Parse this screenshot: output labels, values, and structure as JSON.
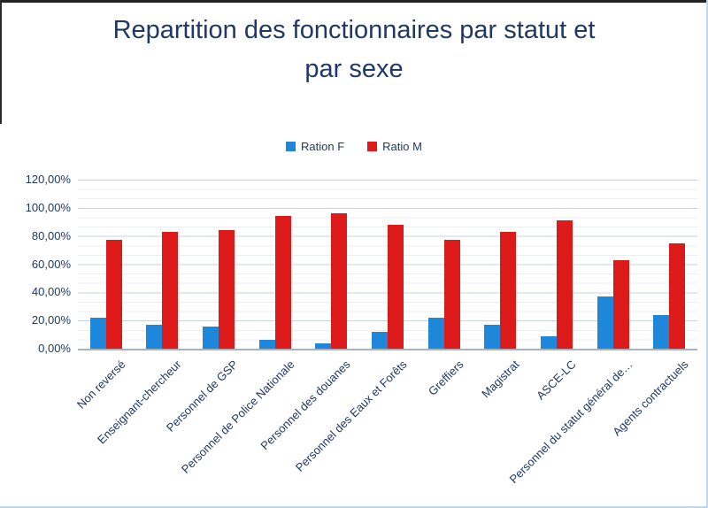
{
  "page": {
    "title_line1": "Repartition des fonctionnaires par statut et",
    "title_line2": "par sexe"
  },
  "chart_data": {
    "type": "bar",
    "title": "Repartition des fonctionnaires par statut et par sexe",
    "categories": [
      "Non reversé",
      "Enseignant-chercheur",
      "Personnel de GSP",
      "Personnel de Police Nationale",
      "Personnel des douanes",
      "Personnel des Eaux et Forêts",
      "Greffiers",
      "Magistrat",
      "ASCE-LC",
      "Personnel du statut général de…",
      "Agents contractuels"
    ],
    "series": [
      {
        "name": "Ration F",
        "color": "#1E87D9",
        "values": [
          22,
          17,
          16,
          6,
          4,
          12,
          22,
          17,
          9,
          37,
          24
        ]
      },
      {
        "name": "Ratio M",
        "color": "#DC1A1A",
        "values": [
          77,
          83,
          84,
          94,
          96,
          88,
          77,
          83,
          91,
          63,
          75
        ]
      }
    ],
    "ylim": [
      0,
      120
    ],
    "yticks": [
      0,
      20,
      40,
      60,
      80,
      100,
      120
    ],
    "ytick_labels": [
      "0,00%",
      "20,00%",
      "40,00%",
      "60,00%",
      "80,00%",
      "100,00%",
      "120,00%"
    ],
    "legend_position": "top-center",
    "grid": "horizontal-major-and-minor",
    "title_color": "#1F3864",
    "axis_text_color": "#1F3864"
  }
}
